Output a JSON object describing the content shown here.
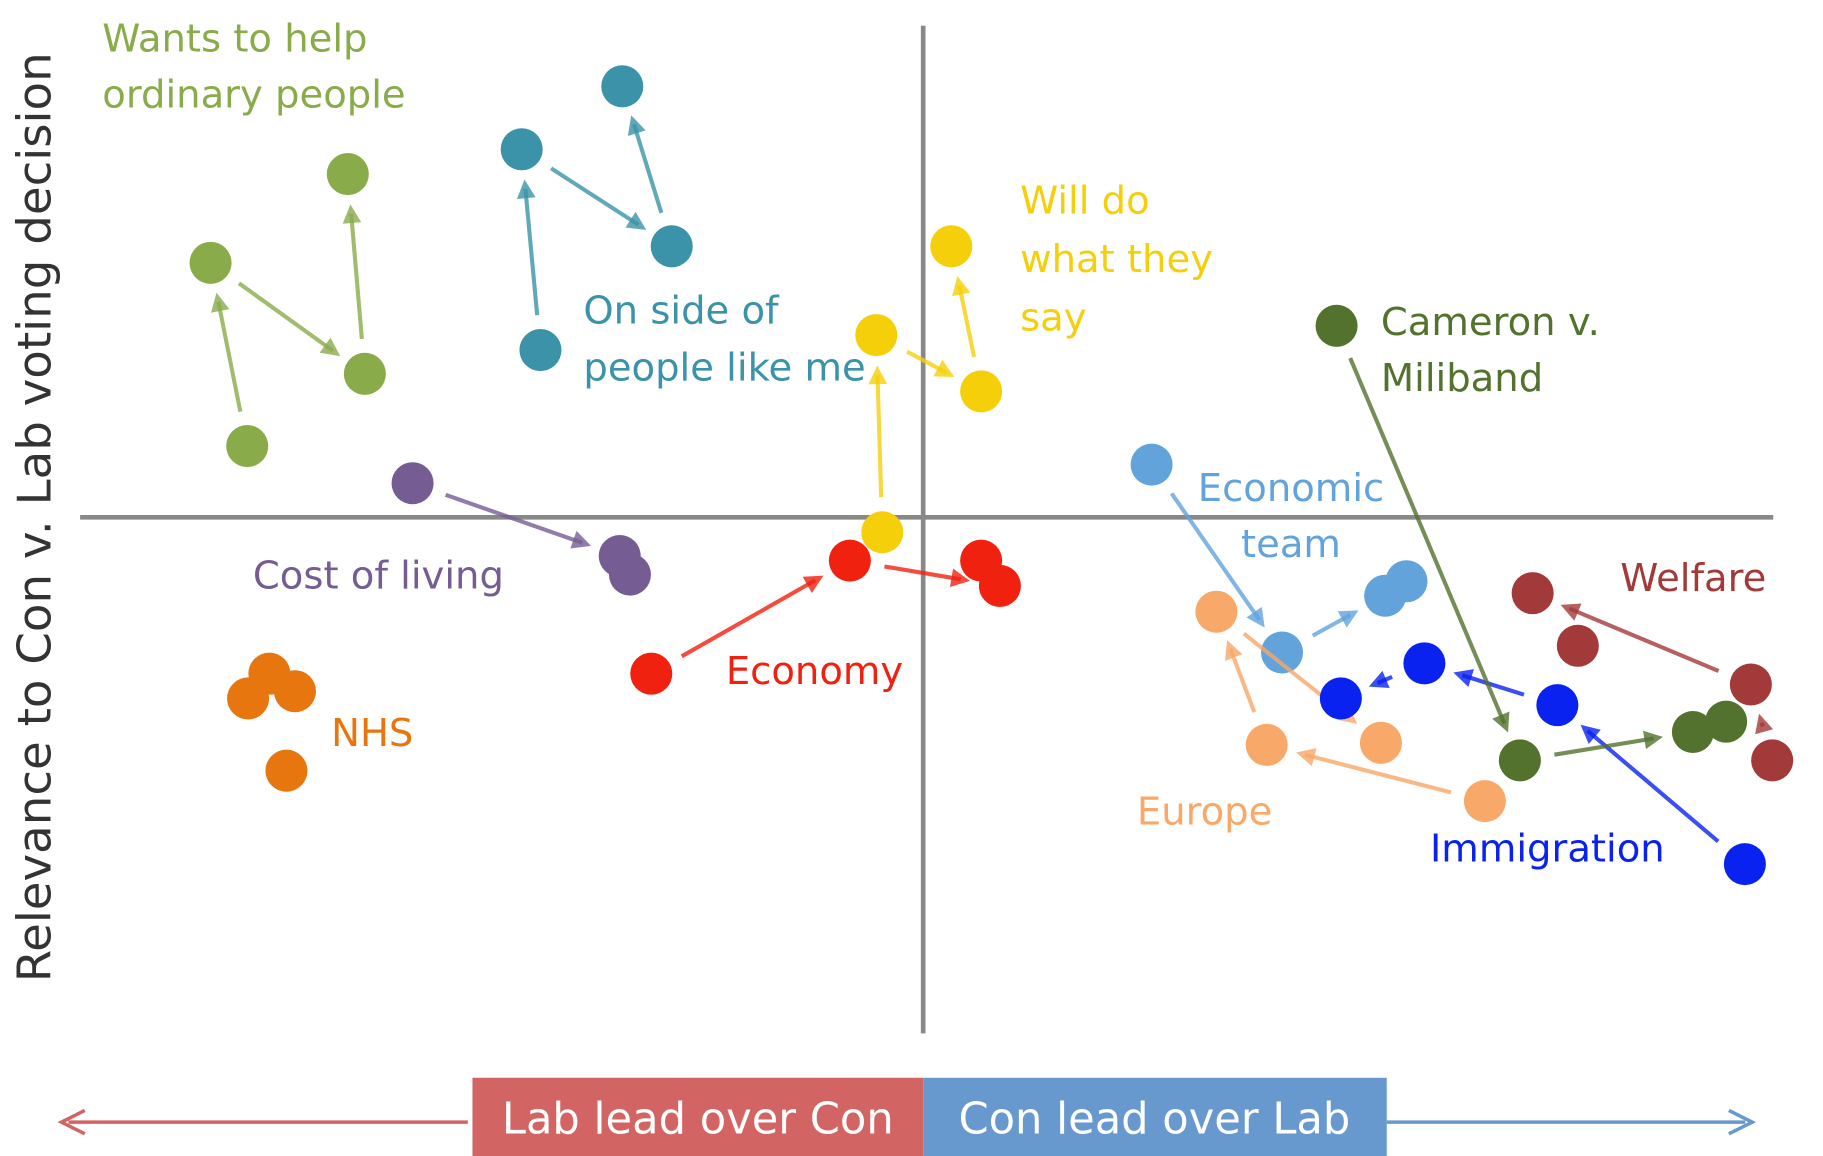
{
  "chart_data": {
    "type": "scatter",
    "ylabel": "Relevance to Con v. Lab voting decision",
    "xlabel_left": "Lab lead over Con",
    "xlabel_right": "Con lead over Lab",
    "xlim": [
      -100,
      100
    ],
    "ylim": [
      -100,
      100
    ],
    "series": [
      {
        "label": [
          "Wants to help",
          "ordinary people"
        ],
        "color": "#8aab4a",
        "arrows": true,
        "x": [
          -79.3,
          -83.6,
          -65.5,
          -67.5
        ],
        "y": [
          13.8,
          49.3,
          27.8,
          66.5
        ]
      },
      {
        "label": [
          "On side of",
          "people like me"
        ],
        "color": "#3a93a8",
        "arrows": true,
        "x": [
          -44.9,
          -47.1,
          -29.5,
          -35.3
        ],
        "y": [
          32.4,
          71.3,
          52.5,
          83.5
        ]
      },
      {
        "label": [
          "Will do",
          "what they",
          "say"
        ],
        "color": "#f5cf0a",
        "arrows": true,
        "x": [
          -4.8,
          -5.5,
          6.8,
          3.3
        ],
        "y": [
          -2.9,
          35.3,
          24.4,
          52.5
        ]
      },
      {
        "label": [
          "Cost of living"
        ],
        "color": "#755d94",
        "arrows": true,
        "x": [
          -59.9,
          -35.6,
          -34.4
        ],
        "y": [
          6.6,
          -7.5,
          -11.1
        ]
      },
      {
        "label": [
          "Economy"
        ],
        "color": "#f0210f",
        "arrows": true,
        "x": [
          -31.9,
          -8.6,
          9.0,
          6.8
        ],
        "y": [
          -30.3,
          -8.4,
          -13.3,
          -8.4
        ]
      },
      {
        "label": [
          "NHS"
        ],
        "color": "#e7760f",
        "arrows": false,
        "x": [
          -76.7,
          -79.2,
          -73.7,
          -74.7
        ],
        "y": [
          -30.3,
          -35.1,
          -33.7,
          -49.1
        ]
      },
      {
        "label": [
          "Economic",
          "team"
        ],
        "color": "#62a3dc",
        "arrows": true,
        "x": [
          26.8,
          42.1,
          54.2,
          56.7
        ],
        "y": [
          10.2,
          -26.2,
          -15.2,
          -12.4
        ]
      },
      {
        "label": [
          "Europe"
        ],
        "color": "#f8a868",
        "arrows": true,
        "x": [
          65.9,
          40.3,
          34.4,
          53.7
        ],
        "y": [
          -55.0,
          -44.1,
          -18.3,
          -43.7
        ]
      },
      {
        "label": [
          "Immigration"
        ],
        "color": "#0a22f0",
        "arrows": true,
        "x": [
          96.4,
          74.4,
          58.8,
          49.0
        ],
        "y": [
          -67.2,
          -36.4,
          -28.3,
          -35.1
        ]
      },
      {
        "label": [
          "Cameron v.",
          "Miliband"
        ],
        "color": "#53722d",
        "arrows": true,
        "x": [
          48.5,
          70.0,
          90.3,
          94.2
        ],
        "y": [
          37.1,
          -47.1,
          -41.6,
          -39.6
        ]
      },
      {
        "label": [
          "Welfare"
        ],
        "color": "#a33a3a",
        "arrows": true,
        "x": [
          99.6,
          97.1,
          71.5,
          76.8
        ],
        "y": [
          -47.1,
          -32.4,
          -14.7,
          -24.9
        ]
      }
    ]
  }
}
